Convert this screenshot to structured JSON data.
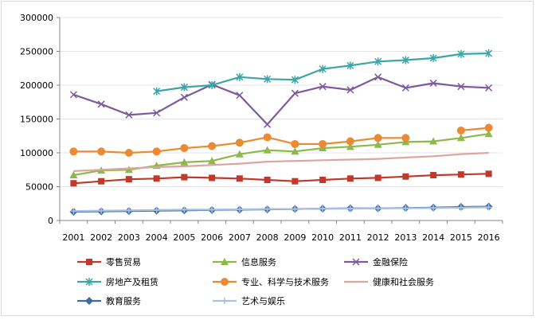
{
  "chart_data": {
    "type": "line",
    "title": "",
    "xlabel": "",
    "ylabel": "",
    "ylim": [
      0,
      300000
    ],
    "y_ticks": [
      "0",
      "50000",
      "100000",
      "150000",
      "200000",
      "250000",
      "300000"
    ],
    "categories": [
      "2001",
      "2002",
      "2003",
      "2004",
      "2005",
      "2006",
      "2007",
      "2008",
      "2009",
      "2010",
      "2011",
      "2012",
      "2013",
      "2014",
      "2015",
      "2016"
    ],
    "legend_position": "bottom",
    "series": [
      {
        "name": "零售贸易",
        "color": "#c0392b",
        "marker": "square",
        "values": [
          55000,
          58000,
          61000,
          62000,
          64000,
          63000,
          62000,
          60000,
          58000,
          60000,
          62000,
          63000,
          65000,
          67000,
          68000,
          69000
        ]
      },
      {
        "name": "信息服务",
        "color": "#8db84a",
        "marker": "triangle",
        "values": [
          67000,
          74000,
          75000,
          81000,
          86000,
          88000,
          98000,
          104000,
          102000,
          107000,
          109000,
          112000,
          116000,
          117000,
          122000,
          128000
        ]
      },
      {
        "name": "金融保险",
        "color": "#7c5a9e",
        "marker": "x",
        "values": [
          186000,
          172000,
          156000,
          159000,
          182000,
          201000,
          185000,
          142000,
          188000,
          198000,
          193000,
          212000,
          196000,
          203000,
          198000,
          196000
        ]
      },
      {
        "name": "房地产及租赁",
        "color": "#3aa6a8",
        "marker": "asterisk",
        "values": [
          null,
          null,
          null,
          191000,
          197000,
          200000,
          212000,
          209000,
          208000,
          224000,
          229000,
          235000,
          237000,
          240000,
          246000,
          247000
        ]
      },
      {
        "name": "专业、科学与技术服务",
        "color": "#ec8a34",
        "marker": "circle",
        "values": [
          102000,
          102000,
          100000,
          102000,
          107000,
          110000,
          115000,
          123000,
          113000,
          113000,
          117000,
          122000,
          122000,
          null,
          133000,
          137000
        ]
      },
      {
        "name": "健康和社会服务",
        "color": "#dba5a2",
        "marker": "none",
        "values": [
          73000,
          75000,
          77000,
          79000,
          80000,
          82000,
          84000,
          87000,
          88000,
          89000,
          90000,
          91000,
          93000,
          95000,
          98000,
          100000
        ]
      },
      {
        "name": "教育服务",
        "color": "#3e6aa8",
        "marker": "diamond",
        "values": [
          13000,
          13500,
          14000,
          14500,
          15000,
          15500,
          16000,
          16500,
          17000,
          17500,
          18000,
          18000,
          18500,
          19000,
          20000,
          20500
        ]
      },
      {
        "name": "艺术与娱乐",
        "color": "#a7c0de",
        "marker": "plus",
        "values": [
          14000,
          14500,
          15000,
          15500,
          16000,
          16000,
          16500,
          17000,
          17000,
          17500,
          17500,
          18000,
          18000,
          18500,
          19000,
          19500
        ]
      }
    ]
  }
}
